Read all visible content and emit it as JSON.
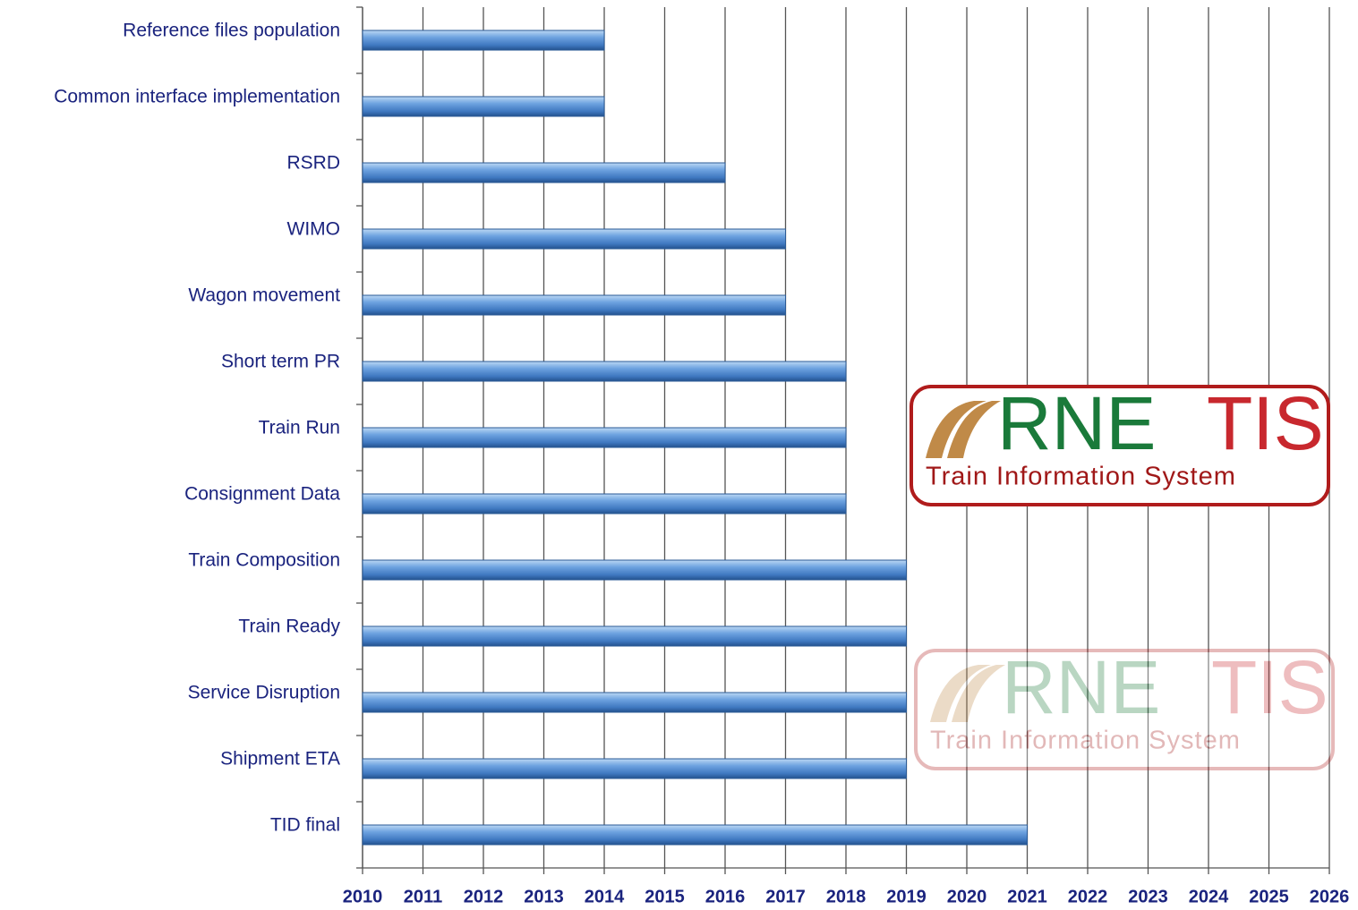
{
  "chart_data": {
    "type": "bar",
    "orientation": "horizontal",
    "categories": [
      "Reference files population",
      "Common interface implementation",
      "RSRD",
      "WIMO",
      "Wagon movement",
      "Short term PR",
      "Train Run",
      "Consignment Data",
      "Train Composition",
      "Train Ready",
      "Service Disruption",
      "Shipment ETA",
      "TID final"
    ],
    "values": [
      2014,
      2014,
      2016,
      2017,
      2017,
      2018,
      2018,
      2018,
      2019,
      2019,
      2019,
      2019,
      2021
    ],
    "color": "#4a86cc",
    "xlim": [
      2010,
      2026
    ],
    "xticks": [
      2010,
      2011,
      2012,
      2013,
      2014,
      2015,
      2016,
      2017,
      2018,
      2019,
      2020,
      2021,
      2022,
      2023,
      2024,
      2025,
      2026
    ],
    "grid": true
  },
  "logos": [
    {
      "brand": "RNE",
      "product": "TIS",
      "tagline": "Train Information System"
    },
    {
      "brand": "RNE",
      "product": "TIS",
      "tagline": "Train Information System"
    }
  ]
}
